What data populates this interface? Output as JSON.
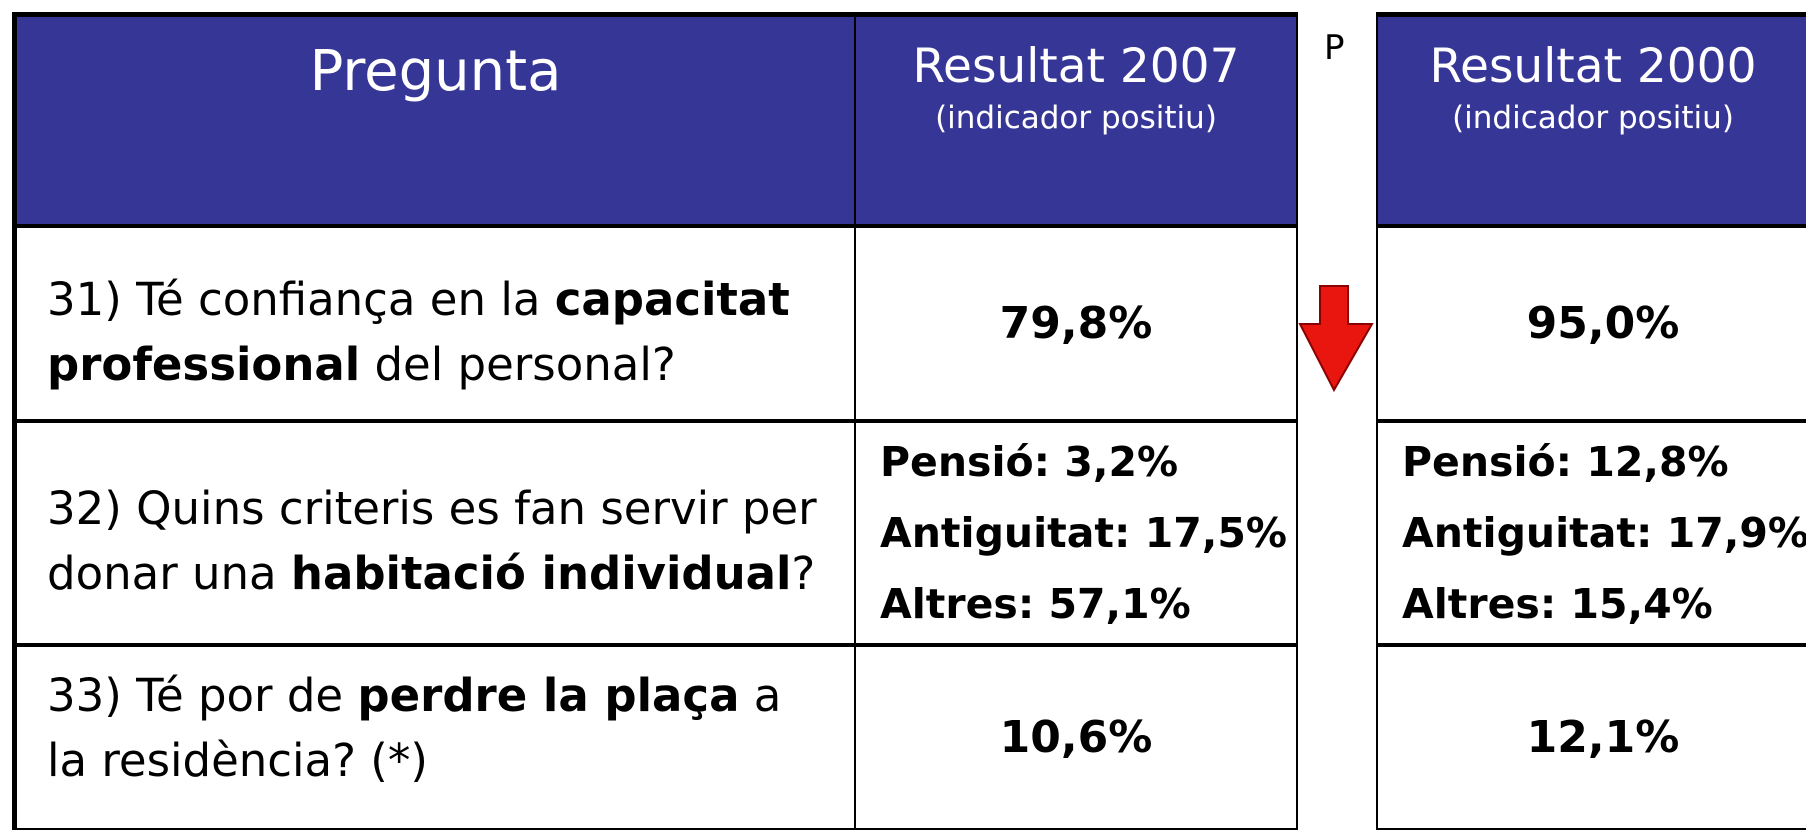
{
  "table": {
    "headers": {
      "question": "Pregunta",
      "result_2007": "Resultat 2007",
      "result_2007_note": "(indicador positiu)",
      "gap": "P",
      "result_2000": "Resultat 2000",
      "result_2000_note": "(indicador positiu)"
    },
    "rows": [
      {
        "question": [
          {
            "text": "31) Té confiança en la "
          },
          {
            "text": "capacitat professional",
            "bold": true
          },
          {
            "text": " del personal?"
          }
        ],
        "result_2007": [
          "79,8%"
        ],
        "result_2000": [
          "95,0%"
        ],
        "trend": "down"
      },
      {
        "question": [
          {
            "text": "32) Quins criteris es fan servir per donar una "
          },
          {
            "text": "habitació individual",
            "bold": true
          },
          {
            "text": "?"
          }
        ],
        "result_2007": [
          "Pensió: 3,2%",
          "Antiguitat: 17,5%",
          "Altres: 57,1%"
        ],
        "result_2000": [
          "Pensió: 12,8%",
          "Antiguitat: 17,9%",
          "Altres: 15,4%"
        ]
      },
      {
        "question": [
          {
            "text": "33) Té por de "
          },
          {
            "text": "perdre la plaça",
            "bold": true
          },
          {
            "text": " a la residència? (*)"
          }
        ],
        "result_2007": [
          "10,6%"
        ],
        "result_2000": [
          "12,1%"
        ]
      }
    ]
  }
}
